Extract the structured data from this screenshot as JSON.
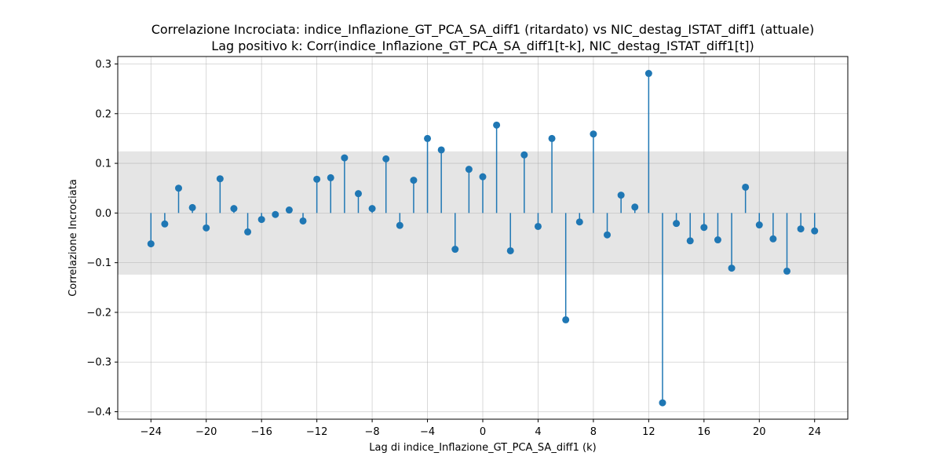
{
  "chart_data": {
    "type": "stem",
    "title": "Correlazione Incrociata: indice_Inflazione_GT_PCA_SA_diff1 (ritardato) vs NIC_destag_ISTAT_diff1 (attuale)",
    "subtitle": "Lag positivo k: Corr(indice_Inflazione_GT_PCA_SA_diff1[t-k], NIC_destag_ISTAT_diff1[t])",
    "xlabel": "Lag di indice_Inflazione_GT_PCA_SA_diff1 (k)",
    "ylabel": "Correlazione Incrociata",
    "xlim": [
      -26.4,
      26.4
    ],
    "ylim": [
      -0.415,
      0.315
    ],
    "x_ticks": [
      -24,
      -20,
      -16,
      -12,
      -8,
      -4,
      0,
      4,
      8,
      12,
      16,
      20,
      24
    ],
    "x_tick_labels": [
      "−24",
      "−20",
      "−16",
      "−12",
      "−8",
      "−4",
      "0",
      "4",
      "8",
      "12",
      "16",
      "20",
      "24"
    ],
    "y_ticks": [
      -0.4,
      -0.3,
      -0.2,
      -0.1,
      0.0,
      0.1,
      0.2,
      0.3
    ],
    "y_tick_labels": [
      "−0.4",
      "−0.3",
      "−0.2",
      "−0.1",
      "0.0",
      "0.1",
      "0.2",
      "0.3"
    ],
    "grid": true,
    "confidence_band": [
      -0.124,
      0.124
    ],
    "colors": {
      "stem": "#1f77b4",
      "band": "#e5e5e5"
    },
    "x": [
      -24,
      -23,
      -22,
      -21,
      -20,
      -19,
      -18,
      -17,
      -16,
      -15,
      -14,
      -13,
      -12,
      -11,
      -10,
      -9,
      -8,
      -7,
      -6,
      -5,
      -4,
      -3,
      -2,
      -1,
      0,
      1,
      2,
      3,
      4,
      5,
      6,
      7,
      8,
      9,
      10,
      11,
      12,
      13,
      14,
      15,
      16,
      17,
      18,
      19,
      20,
      21,
      22,
      23,
      24
    ],
    "values": [
      -0.062,
      -0.022,
      0.05,
      0.011,
      -0.03,
      0.069,
      0.009,
      -0.038,
      -0.013,
      -0.003,
      0.006,
      -0.016,
      0.068,
      0.071,
      0.111,
      0.039,
      0.009,
      0.109,
      -0.025,
      0.066,
      0.15,
      0.127,
      -0.073,
      0.088,
      0.073,
      0.177,
      -0.076,
      0.117,
      -0.027,
      0.15,
      -0.215,
      -0.018,
      0.159,
      -0.044,
      0.036,
      0.012,
      0.281,
      -0.382,
      -0.021,
      -0.056,
      -0.029,
      -0.054,
      -0.111,
      0.052,
      -0.024,
      -0.052,
      -0.117,
      -0.032,
      -0.036
    ]
  }
}
